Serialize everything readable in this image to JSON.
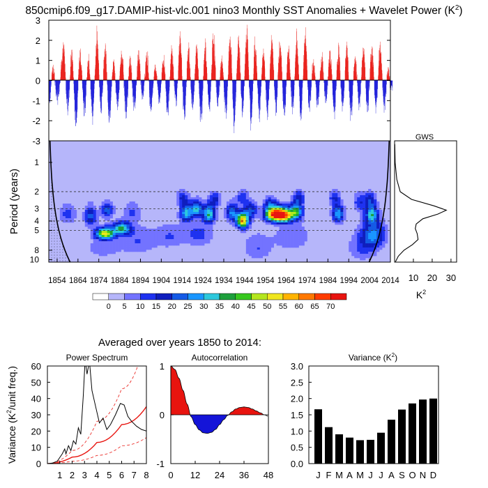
{
  "page": {
    "title": "850cmip6.f09_g17.DAMIP-hist-vlc.001 nino3 Monthly SST Anomalies + Wavelet Power (K",
    "title_sup": "2",
    "title_end": ")",
    "averaged_label": "Averaged over years 1850 to 2014:"
  },
  "colors": {
    "positive": "#e8140f",
    "negative": "#1414d8",
    "bg_level": "#b6b6fa"
  },
  "chart_data": [
    {
      "id": "timeseries",
      "type": "bar",
      "x_range": [
        1850,
        2014
      ],
      "ylim": [
        -3,
        3
      ],
      "yticks": [
        "3",
        "2",
        "1",
        "0",
        "-1",
        "-2",
        "-3"
      ],
      "note_values": "monthly anomalies estimated; annual envelope approximations",
      "annual_peaks": [
        {
          "year": 1850,
          "v": -1.4
        },
        {
          "year": 1852,
          "v": 0.8
        },
        {
          "year": 1854,
          "v": -1.2
        },
        {
          "year": 1857,
          "v": 1.9
        },
        {
          "year": 1859,
          "v": -1.7
        },
        {
          "year": 1861,
          "v": 1.6
        },
        {
          "year": 1863,
          "v": -2.6
        },
        {
          "year": 1865,
          "v": 1.8
        },
        {
          "year": 1867,
          "v": -1.9
        },
        {
          "year": 1869,
          "v": 1.3
        },
        {
          "year": 1871,
          "v": -2.0
        },
        {
          "year": 1873,
          "v": 2.7
        },
        {
          "year": 1875,
          "v": -1.7
        },
        {
          "year": 1877,
          "v": 1.9
        },
        {
          "year": 1879,
          "v": -2.2
        },
        {
          "year": 1881,
          "v": 1.1
        },
        {
          "year": 1883,
          "v": -1.5
        },
        {
          "year": 1885,
          "v": 1.7
        },
        {
          "year": 1887,
          "v": -2.0
        },
        {
          "year": 1889,
          "v": 1.2
        },
        {
          "year": 1891,
          "v": -1.6
        },
        {
          "year": 1893,
          "v": 1.5
        },
        {
          "year": 1895,
          "v": -1.1
        },
        {
          "year": 1897,
          "v": 1.6
        },
        {
          "year": 1899,
          "v": -1.7
        },
        {
          "year": 1901,
          "v": 0.9
        },
        {
          "year": 1903,
          "v": -1.2
        },
        {
          "year": 1905,
          "v": 1.3
        },
        {
          "year": 1907,
          "v": -1.8
        },
        {
          "year": 1909,
          "v": 1.7
        },
        {
          "year": 1911,
          "v": -1.3
        },
        {
          "year": 1913,
          "v": 2.4
        },
        {
          "year": 1915,
          "v": -2.1
        },
        {
          "year": 1917,
          "v": 1.8
        },
        {
          "year": 1919,
          "v": -1.6
        },
        {
          "year": 1921,
          "v": 1.9
        },
        {
          "year": 1923,
          "v": -2.3
        },
        {
          "year": 1925,
          "v": 2.0
        },
        {
          "year": 1927,
          "v": -1.6
        },
        {
          "year": 1929,
          "v": 2.5
        },
        {
          "year": 1931,
          "v": -1.4
        },
        {
          "year": 1933,
          "v": 1.2
        },
        {
          "year": 1935,
          "v": -2.0
        },
        {
          "year": 1937,
          "v": 2.6
        },
        {
          "year": 1939,
          "v": -2.6
        },
        {
          "year": 1941,
          "v": 2.3
        },
        {
          "year": 1943,
          "v": -1.9
        },
        {
          "year": 1945,
          "v": 2.9
        },
        {
          "year": 1947,
          "v": -2.5
        },
        {
          "year": 1949,
          "v": 2.1
        },
        {
          "year": 1951,
          "v": -2.0
        },
        {
          "year": 1953,
          "v": 1.7
        },
        {
          "year": 1955,
          "v": -1.9
        },
        {
          "year": 1957,
          "v": 2.4
        },
        {
          "year": 1959,
          "v": -1.7
        },
        {
          "year": 1961,
          "v": 2.3
        },
        {
          "year": 1963,
          "v": -2.1
        },
        {
          "year": 1965,
          "v": 1.9
        },
        {
          "year": 1967,
          "v": -1.8
        },
        {
          "year": 1969,
          "v": 2.5
        },
        {
          "year": 1971,
          "v": -2.2
        },
        {
          "year": 1973,
          "v": 2.7
        },
        {
          "year": 1975,
          "v": -1.6
        },
        {
          "year": 1977,
          "v": 1.1
        },
        {
          "year": 1979,
          "v": -1.5
        },
        {
          "year": 1981,
          "v": 1.3
        },
        {
          "year": 1983,
          "v": -1.3
        },
        {
          "year": 1985,
          "v": 1.6
        },
        {
          "year": 1987,
          "v": -1.9
        },
        {
          "year": 1989,
          "v": 1.8
        },
        {
          "year": 1991,
          "v": -1.6
        },
        {
          "year": 1993,
          "v": 2.0
        },
        {
          "year": 1995,
          "v": -2.1
        },
        {
          "year": 1997,
          "v": 1.3
        },
        {
          "year": 1999,
          "v": -1.5
        },
        {
          "year": 2001,
          "v": 2.0
        },
        {
          "year": 2003,
          "v": -2.0
        },
        {
          "year": 2005,
          "v": 2.0
        },
        {
          "year": 2007,
          "v": -1.6
        },
        {
          "year": 2009,
          "v": 2.0
        },
        {
          "year": 2011,
          "v": -1.5
        },
        {
          "year": 2013,
          "v": 0.8
        },
        {
          "year": 2014,
          "v": -0.4
        }
      ]
    },
    {
      "id": "wavelet",
      "type": "heatmap",
      "ylabel": "Period (years)",
      "yticks": [
        "1",
        "2",
        "3",
        "4",
        "5",
        "8",
        "10"
      ],
      "ytick_values": [
        1,
        2,
        3,
        4,
        5,
        8,
        10
      ],
      "xticks": [
        "1854",
        "1864",
        "1874",
        "1884",
        "1894",
        "1904",
        "1914",
        "1924",
        "1934",
        "1944",
        "1954",
        "1964",
        "1974",
        "1984",
        "1994",
        "2004",
        "2014"
      ],
      "xtick_values": [
        1854,
        1864,
        1874,
        1884,
        1894,
        1904,
        1914,
        1924,
        1934,
        1944,
        1954,
        1964,
        1974,
        1984,
        1994,
        2004,
        2014
      ],
      "dashed_periods": [
        2,
        3,
        4,
        5
      ],
      "blobs": [
        {
          "year": 1877,
          "period": 5.4,
          "dy": 3,
          "dp": 0.5,
          "amp": 50
        },
        {
          "year": 1885,
          "period": 4.8,
          "dy": 3,
          "dp": 0.5,
          "amp": 35
        },
        {
          "year": 1870,
          "period": 3.6,
          "dy": 2,
          "dp": 0.6,
          "amp": 22
        },
        {
          "year": 1878,
          "period": 3.1,
          "dy": 2,
          "dp": 0.4,
          "amp": 24
        },
        {
          "year": 1859,
          "period": 3.4,
          "dy": 3,
          "dp": 0.6,
          "amp": 12
        },
        {
          "year": 1890,
          "period": 3.2,
          "dy": 3,
          "dp": 0.5,
          "amp": 10
        },
        {
          "year": 1893,
          "period": 6.5,
          "dy": 6,
          "dp": 1.6,
          "amp": 10
        },
        {
          "year": 1876,
          "period": 7.5,
          "dy": 6,
          "dp": 1.5,
          "amp": 8
        },
        {
          "year": 1916,
          "period": 3.3,
          "dy": 2,
          "dp": 0.5,
          "amp": 30
        },
        {
          "year": 1921,
          "period": 3.0,
          "dy": 2,
          "dp": 0.4,
          "amp": 30
        },
        {
          "year": 1927,
          "period": 3.4,
          "dy": 2,
          "dp": 0.5,
          "amp": 34
        },
        {
          "year": 1914,
          "period": 2.3,
          "dy": 2,
          "dp": 0.3,
          "amp": 14
        },
        {
          "year": 1930,
          "period": 2.4,
          "dy": 2,
          "dp": 0.3,
          "amp": 16
        },
        {
          "year": 1922,
          "period": 5.5,
          "dy": 5,
          "dp": 1.2,
          "amp": 12
        },
        {
          "year": 1943,
          "period": 4.0,
          "dy": 2,
          "dp": 0.5,
          "amp": 60
        },
        {
          "year": 1938,
          "period": 3.3,
          "dy": 2,
          "dp": 0.5,
          "amp": 26
        },
        {
          "year": 1947,
          "period": 3.1,
          "dy": 2,
          "dp": 0.4,
          "amp": 22
        },
        {
          "year": 1943,
          "period": 2.3,
          "dy": 2,
          "dp": 0.3,
          "amp": 14
        },
        {
          "year": 1958,
          "period": 3.4,
          "dy": 3,
          "dp": 0.4,
          "amp": 62
        },
        {
          "year": 1963,
          "period": 3.5,
          "dy": 3,
          "dp": 0.4,
          "amp": 60
        },
        {
          "year": 1969,
          "period": 3.2,
          "dy": 2,
          "dp": 0.4,
          "amp": 34
        },
        {
          "year": 1970,
          "period": 2.3,
          "dy": 2,
          "dp": 0.3,
          "amp": 16
        },
        {
          "year": 1956,
          "period": 2.6,
          "dy": 2,
          "dp": 0.3,
          "amp": 14
        },
        {
          "year": 1967,
          "period": 5.8,
          "dy": 6,
          "dp": 1.5,
          "amp": 10
        },
        {
          "year": 1989,
          "period": 3.4,
          "dy": 2,
          "dp": 0.5,
          "amp": 30
        },
        {
          "year": 1987,
          "period": 2.3,
          "dy": 2,
          "dp": 0.3,
          "amp": 14
        },
        {
          "year": 1999,
          "period": 2.6,
          "dy": 2,
          "dp": 0.4,
          "amp": 14
        },
        {
          "year": 2005,
          "period": 3.4,
          "dy": 2,
          "dp": 0.5,
          "amp": 30
        },
        {
          "year": 2004,
          "period": 2.4,
          "dy": 2,
          "dp": 0.3,
          "amp": 16
        },
        {
          "year": 2006,
          "period": 5.5,
          "dy": 4,
          "dp": 1.2,
          "amp": 24
        },
        {
          "year": 2001,
          "period": 7.5,
          "dy": 5,
          "dp": 1.8,
          "amp": 12
        },
        {
          "year": 1950,
          "period": 7.6,
          "dy": 5,
          "dp": 1.8,
          "amp": 10
        },
        {
          "year": 1908,
          "period": 5.8,
          "dy": 5,
          "dp": 1.2,
          "amp": 10
        }
      ]
    },
    {
      "id": "colorbar",
      "type": "bar",
      "labels": [
        "0",
        "5",
        "10",
        "15",
        "20",
        "25",
        "30",
        "35",
        "40",
        "45",
        "50",
        "55",
        "60",
        "65",
        "70"
      ],
      "colors": [
        "#ffffff",
        "#b6b6fa",
        "#7373ff",
        "#1e32f0",
        "#0f1ebe",
        "#145ae6",
        "#1996ff",
        "#2dc8dc",
        "#1ea03c",
        "#37c81e",
        "#b4e61e",
        "#f0e61e",
        "#ffb400",
        "#ff7800",
        "#ff3c00",
        "#e8140f"
      ]
    },
    {
      "id": "gws",
      "type": "line",
      "title": "GWS",
      "xlabel": "K",
      "xlabel_sup": "2",
      "xticks": [
        "10",
        "20",
        "30"
      ],
      "xtick_values": [
        10,
        20,
        30
      ],
      "xlim": [
        0,
        33
      ],
      "points": [
        {
          "period": 0.65,
          "v": 0.1
        },
        {
          "period": 1.0,
          "v": 0.3
        },
        {
          "period": 1.5,
          "v": 1.2
        },
        {
          "period": 2.0,
          "v": 3.0
        },
        {
          "period": 2.4,
          "v": 9.0
        },
        {
          "period": 2.8,
          "v": 21.0
        },
        {
          "period": 3.1,
          "v": 27.5
        },
        {
          "period": 3.4,
          "v": 23.0
        },
        {
          "period": 3.8,
          "v": 15.0
        },
        {
          "period": 4.3,
          "v": 11.5
        },
        {
          "period": 4.8,
          "v": 11.0
        },
        {
          "period": 5.4,
          "v": 12.0
        },
        {
          "period": 6.2,
          "v": 12.5
        },
        {
          "period": 7.0,
          "v": 9.5
        },
        {
          "period": 8.0,
          "v": 5.0
        },
        {
          "period": 9.2,
          "v": 2.0
        },
        {
          "period": 10.5,
          "v": 0.5
        }
      ]
    },
    {
      "id": "power_spectrum",
      "type": "line",
      "title": "Power Spectrum",
      "ylabel": "Variance (K",
      "ylabel_sup": "2",
      "ylabel_end": "/unit freq.)",
      "xlim": [
        0,
        8
      ],
      "ylim": [
        0,
        60
      ],
      "xticks": [
        "1",
        "2",
        "3",
        "4",
        "5",
        "6",
        "7",
        "8"
      ],
      "yticks": [
        "0",
        "10",
        "20",
        "30",
        "40",
        "50",
        "60"
      ],
      "spectrum": [
        {
          "x": 0.0,
          "y": 0
        },
        {
          "x": 0.4,
          "y": 0.3
        },
        {
          "x": 0.8,
          "y": 1.5
        },
        {
          "x": 1.2,
          "y": 6
        },
        {
          "x": 1.4,
          "y": 9
        },
        {
          "x": 1.5,
          "y": 6
        },
        {
          "x": 1.7,
          "y": 11
        },
        {
          "x": 1.9,
          "y": 8
        },
        {
          "x": 2.1,
          "y": 14
        },
        {
          "x": 2.3,
          "y": 12
        },
        {
          "x": 2.5,
          "y": 22
        },
        {
          "x": 2.7,
          "y": 18
        },
        {
          "x": 2.9,
          "y": 42
        },
        {
          "x": 3.05,
          "y": 64
        },
        {
          "x": 3.2,
          "y": 55
        },
        {
          "x": 3.4,
          "y": 63
        },
        {
          "x": 3.6,
          "y": 45
        },
        {
          "x": 3.9,
          "y": 35
        },
        {
          "x": 4.2,
          "y": 25
        },
        {
          "x": 4.5,
          "y": 28
        },
        {
          "x": 4.8,
          "y": 21
        },
        {
          "x": 5.1,
          "y": 24
        },
        {
          "x": 5.5,
          "y": 30
        },
        {
          "x": 5.9,
          "y": 37
        },
        {
          "x": 6.2,
          "y": 36
        },
        {
          "x": 6.5,
          "y": 29
        },
        {
          "x": 6.8,
          "y": 26
        },
        {
          "x": 7.2,
          "y": 23
        },
        {
          "x": 7.6,
          "y": 21
        },
        {
          "x": 8.0,
          "y": 20
        }
      ],
      "red_noise_mid": [
        {
          "x": 0,
          "y": 0
        },
        {
          "x": 2,
          "y": 4
        },
        {
          "x": 4,
          "y": 13
        },
        {
          "x": 6,
          "y": 24
        },
        {
          "x": 8,
          "y": 35
        }
      ],
      "red_noise_upper": [
        {
          "x": 0,
          "y": 0
        },
        {
          "x": 2,
          "y": 8
        },
        {
          "x": 4,
          "y": 26
        },
        {
          "x": 6,
          "y": 46
        },
        {
          "x": 7.3,
          "y": 60
        }
      ],
      "red_noise_lower": [
        {
          "x": 0,
          "y": 0
        },
        {
          "x": 2,
          "y": 1.5
        },
        {
          "x": 4,
          "y": 5
        },
        {
          "x": 6,
          "y": 11
        },
        {
          "x": 8,
          "y": 16
        }
      ]
    },
    {
      "id": "autocorrelation",
      "type": "area",
      "title": "Autocorrelation",
      "xlim": [
        0,
        48
      ],
      "ylim": [
        -1,
        1
      ],
      "xticks": [
        "0",
        "12",
        "24",
        "36",
        "48"
      ],
      "yticks": [
        "1",
        "0",
        "-1"
      ],
      "points": [
        {
          "lag": 0,
          "r": 1.0
        },
        {
          "lag": 2,
          "r": 0.93
        },
        {
          "lag": 4,
          "r": 0.75
        },
        {
          "lag": 6,
          "r": 0.5
        },
        {
          "lag": 8,
          "r": 0.22
        },
        {
          "lag": 10,
          "r": -0.04
        },
        {
          "lag": 12,
          "r": -0.2
        },
        {
          "lag": 14,
          "r": -0.31
        },
        {
          "lag": 16,
          "r": -0.37
        },
        {
          "lag": 18,
          "r": -0.38
        },
        {
          "lag": 20,
          "r": -0.36
        },
        {
          "lag": 22,
          "r": -0.3
        },
        {
          "lag": 24,
          "r": -0.2
        },
        {
          "lag": 26,
          "r": -0.1
        },
        {
          "lag": 28,
          "r": -0.01
        },
        {
          "lag": 30,
          "r": 0.06
        },
        {
          "lag": 32,
          "r": 0.12
        },
        {
          "lag": 34,
          "r": 0.15
        },
        {
          "lag": 36,
          "r": 0.16
        },
        {
          "lag": 38,
          "r": 0.15
        },
        {
          "lag": 40,
          "r": 0.12
        },
        {
          "lag": 42,
          "r": 0.08
        },
        {
          "lag": 44,
          "r": 0.04
        },
        {
          "lag": 46,
          "r": 0.0
        },
        {
          "lag": 48,
          "r": -0.03
        }
      ]
    },
    {
      "id": "monthly_variance",
      "type": "bar",
      "title": "Variance (K",
      "title_sup": "2",
      "title_end": ")",
      "categories": [
        "J",
        "F",
        "M",
        "A",
        "M",
        "J",
        "J",
        "A",
        "S",
        "O",
        "N",
        "D"
      ],
      "values": [
        1.67,
        1.12,
        0.9,
        0.8,
        0.72,
        0.73,
        0.95,
        1.35,
        1.66,
        1.85,
        1.97,
        2.0
      ],
      "ylim": [
        0,
        3
      ],
      "yticks": [
        "0.0",
        "0.5",
        "1.0",
        "1.5",
        "2.0",
        "2.5",
        "3.0"
      ]
    }
  ]
}
